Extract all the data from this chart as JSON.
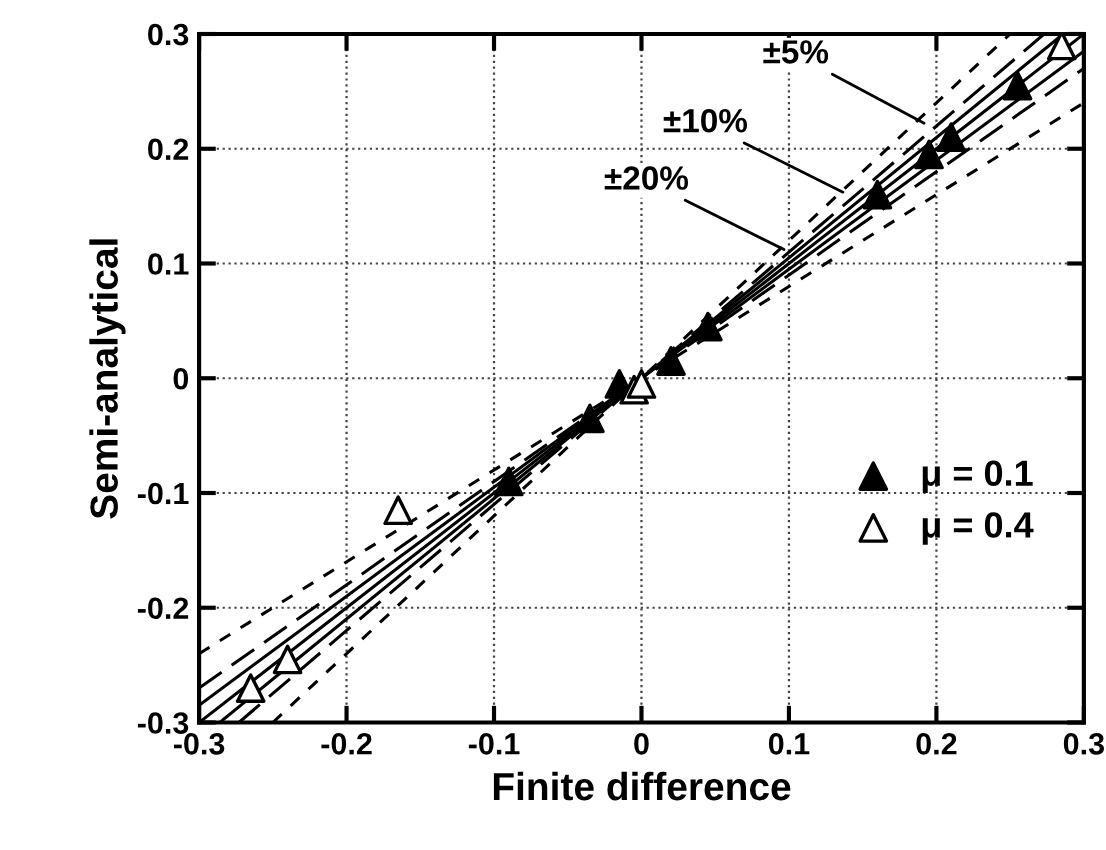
{
  "chart_data": {
    "type": "scatter",
    "xlabel": "Finite difference",
    "ylabel": "Semi-analytical",
    "xlim": [
      -0.3,
      0.3
    ],
    "ylim": [
      -0.3,
      0.3
    ],
    "xticks": [
      -0.3,
      -0.2,
      -0.1,
      0,
      0.1,
      0.2,
      0.3
    ],
    "yticks": [
      -0.3,
      -0.2,
      -0.1,
      0,
      0.1,
      0.2,
      0.3
    ],
    "grid": true,
    "legend": "right",
    "series": [
      {
        "type": "line",
        "color": "#000000",
        "line_style": "solid",
        "x": [
          -0.3,
          0.3
        ],
        "values": [
          -0.3,
          0.3
        ]
      },
      {
        "type": "line",
        "color": "#000000",
        "line_style": "solid",
        "x": [
          -0.286,
          0.286
        ],
        "values": [
          -0.3,
          0.3
        ]
      },
      {
        "type": "line",
        "color": "#000000",
        "line_style": "solid",
        "x": [
          -0.3,
          0.3
        ],
        "values": [
          -0.285,
          0.285
        ]
      },
      {
        "type": "line",
        "color": "#000000",
        "line_style": "dashed",
        "x": [
          -0.273,
          0.273
        ],
        "values": [
          -0.3,
          0.3
        ]
      },
      {
        "type": "line",
        "color": "#000000",
        "line_style": "dashed",
        "x": [
          -0.3,
          0.3
        ],
        "values": [
          -0.27,
          0.27
        ]
      },
      {
        "type": "line",
        "color": "#000000",
        "line_style": "dotted",
        "x": [
          -0.25,
          0.25
        ],
        "values": [
          -0.3,
          0.3
        ]
      },
      {
        "type": "line",
        "color": "#000000",
        "line_style": "dotted",
        "x": [
          -0.3,
          0.3
        ],
        "values": [
          -0.24,
          0.24
        ]
      },
      {
        "name": "μ = 0.1",
        "color": "#000000",
        "marker": "triangle",
        "x": [
          -0.09,
          -0.035,
          -0.015,
          0.02,
          0.045,
          0.16,
          0.195,
          0.21,
          0.255
        ],
        "values": [
          -0.09,
          -0.035,
          -0.005,
          0.015,
          0.045,
          0.16,
          0.195,
          0.21,
          0.255
        ]
      },
      {
        "name": "μ = 0.4",
        "color": "#ffffff",
        "marker": "triangle",
        "x": [
          -0.265,
          -0.24,
          -0.165,
          -0.005,
          0.0,
          0.285
        ],
        "values": [
          -0.27,
          -0.245,
          -0.115,
          -0.01,
          -0.005,
          0.29
        ]
      }
    ],
    "annotations": [
      {
        "text": "±5%",
        "x": 0.195,
        "y": 0.22
      },
      {
        "text": "±10%",
        "x": 0.14,
        "y": 0.16
      },
      {
        "text": "±20%",
        "x": 0.1,
        "y": 0.11
      }
    ]
  }
}
